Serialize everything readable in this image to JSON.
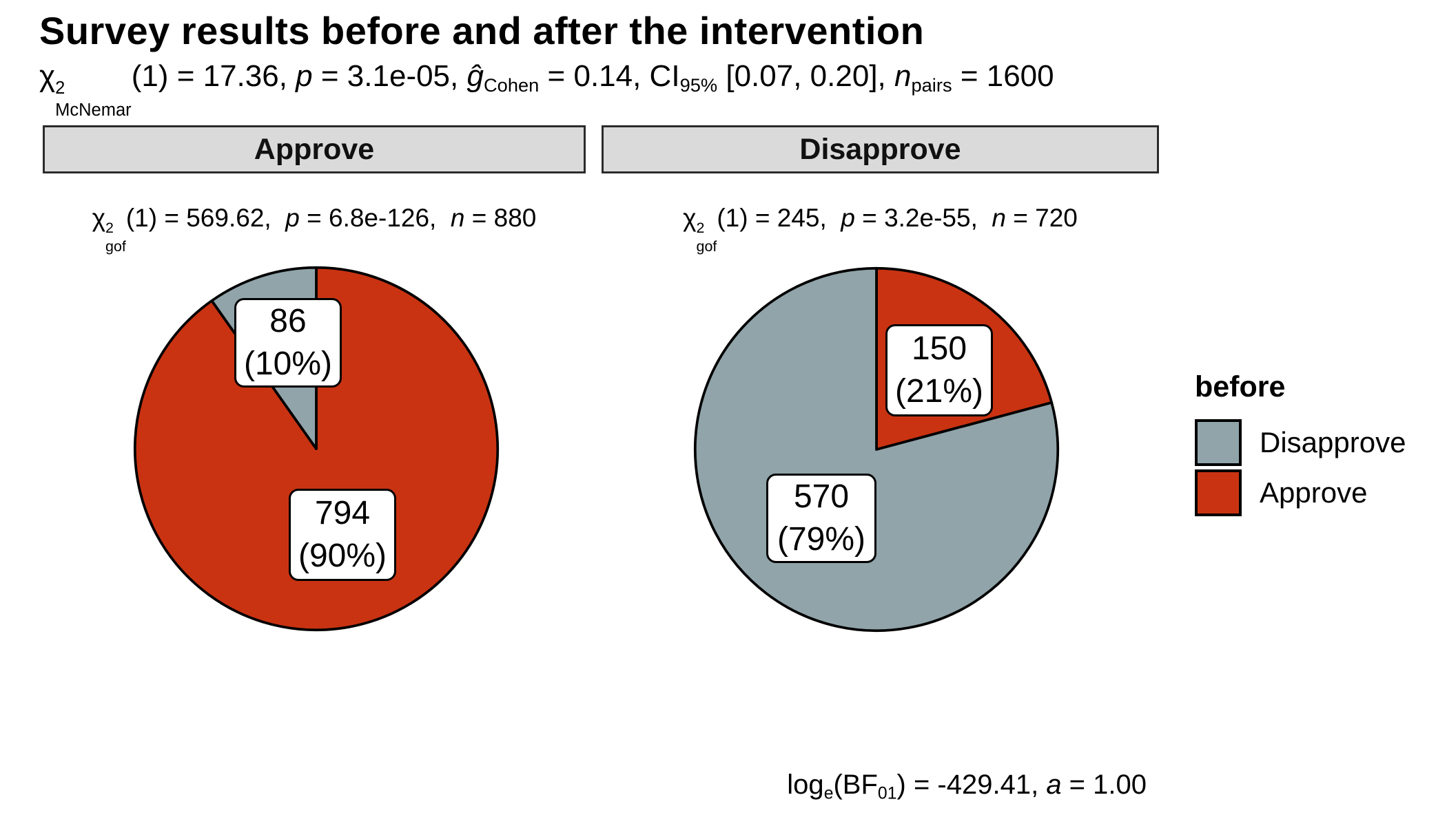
{
  "title": "Survey results before and after the intervention",
  "subtitle": {
    "plain": "chi2_McNemar(1) = 17.36, p = 3.1e-05, g_Cohen = 0.14, CI_95% [0.07, 0.20], n_pairs = 1600",
    "tokens": [
      {
        "t": "χ"
      },
      {
        "stack": {
          "sup": "2",
          "sub": "McNemar"
        }
      },
      {
        "t": "(1) = 17.36, "
      },
      {
        "t": "p",
        "i": true
      },
      {
        "t": " = 3.1e-05, "
      },
      {
        "t": "ĝ",
        "i": true
      },
      {
        "t": "Cohen",
        "sub": true
      },
      {
        "t": " = 0.14, CI"
      },
      {
        "t": "95%",
        "sub": true
      },
      {
        "t": " [0.07, 0.20], "
      },
      {
        "t": "n",
        "i": true
      },
      {
        "t": "pairs",
        "sub": true
      },
      {
        "t": " = 1600"
      }
    ]
  },
  "caption": {
    "plain": "log_e(BF_01) = -429.41, a = 1.00",
    "tokens": [
      {
        "t": "log"
      },
      {
        "t": "e",
        "sub": true
      },
      {
        "t": "(BF"
      },
      {
        "t": "01",
        "sub": true
      },
      {
        "t": ") = -429.41, "
      },
      {
        "t": "a",
        "i": true
      },
      {
        "t": " = 1.00"
      }
    ]
  },
  "legend": {
    "title": "before",
    "position": "right",
    "entries": [
      {
        "label": "Disapprove",
        "color": "#90A4AA"
      },
      {
        "label": "Approve",
        "color": "#C93312"
      }
    ]
  },
  "colors": {
    "approve": "#C93312",
    "disapprove": "#90A4AA",
    "strip_bg": "#DADADA",
    "strip_border": "#2B2B2B",
    "outline": "#000000",
    "background": "#FFFFFF"
  },
  "chart_data": [
    {
      "type": "pie",
      "facet": "Approve",
      "categories": [
        "Approve",
        "Disapprove"
      ],
      "values": [
        794,
        86
      ],
      "percentages": [
        90,
        10
      ],
      "pct_labels": [
        "(90%)",
        "(10%)"
      ],
      "colors": [
        "#C93312",
        "#90A4AA"
      ],
      "n": 880,
      "start_angle_deg": 0,
      "direction": "clockwise",
      "stats": "chi2_gof(1) = 569.62,  p = 6.8e-126,  n = 880",
      "stats_tokens": [
        {
          "t": "χ"
        },
        {
          "stack": {
            "sup": "2",
            "sub": "gof"
          }
        },
        {
          "t": "(1) = 569.62,  "
        },
        {
          "t": "p",
          "i": true
        },
        {
          "t": " = 6.8e-126,  "
        },
        {
          "t": "n",
          "i": true
        },
        {
          "t": " = 880"
        }
      ]
    },
    {
      "type": "pie",
      "facet": "Disapprove",
      "categories": [
        "Approve",
        "Disapprove"
      ],
      "values": [
        150,
        570
      ],
      "percentages": [
        21,
        79
      ],
      "pct_labels": [
        "(21%)",
        "(79%)"
      ],
      "colors": [
        "#C93312",
        "#90A4AA"
      ],
      "n": 720,
      "start_angle_deg": 0,
      "direction": "clockwise",
      "stats": "chi2_gof(1) = 245,  p = 3.2e-55,  n = 720",
      "stats_tokens": [
        {
          "t": "χ"
        },
        {
          "stack": {
            "sup": "2",
            "sub": "gof"
          }
        },
        {
          "t": "(1) = 245,  "
        },
        {
          "t": "p",
          "i": true
        },
        {
          "t": " = 3.2e-55,  "
        },
        {
          "t": "n",
          "i": true
        },
        {
          "t": " = 720"
        }
      ]
    }
  ]
}
